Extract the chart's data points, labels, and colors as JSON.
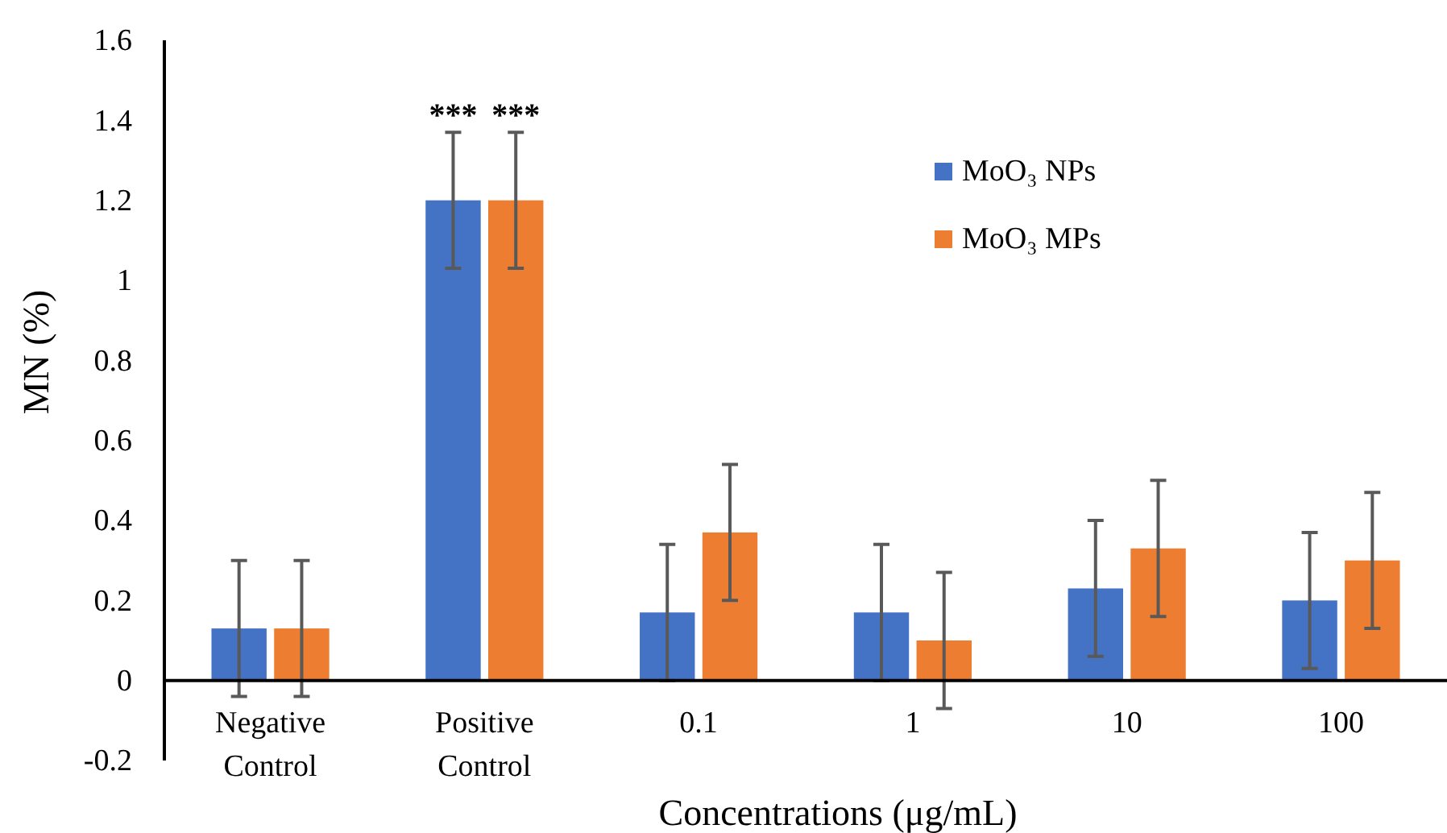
{
  "chart_data": {
    "type": "bar",
    "xlabel": "Concentrations (μg/mL)",
    "ylabel": "MN (%)",
    "categories": [
      "Negative Control",
      "Positive Control",
      "0.1",
      "1",
      "10",
      "100"
    ],
    "series": [
      {
        "name": "MoO₃ NPs",
        "color": "#4472c4",
        "values": [
          0.13,
          1.2,
          0.17,
          0.17,
          0.23,
          0.2
        ],
        "errors": [
          0.17,
          0.17,
          0.17,
          0.17,
          0.17,
          0.17
        ]
      },
      {
        "name": "MoO₃ MPs",
        "color": "#ed7d31",
        "values": [
          0.13,
          1.2,
          0.37,
          0.1,
          0.33,
          0.3
        ],
        "errors": [
          0.17,
          0.17,
          0.17,
          0.17,
          0.17,
          0.17
        ]
      }
    ],
    "ylim": [
      -0.2,
      1.6
    ],
    "yticks": [
      -0.2,
      0,
      0.2,
      0.4,
      0.6,
      0.8,
      1,
      1.2,
      1.4,
      1.6
    ],
    "grid": false,
    "legend": "top right",
    "annotations": [
      "***",
      "***"
    ]
  }
}
